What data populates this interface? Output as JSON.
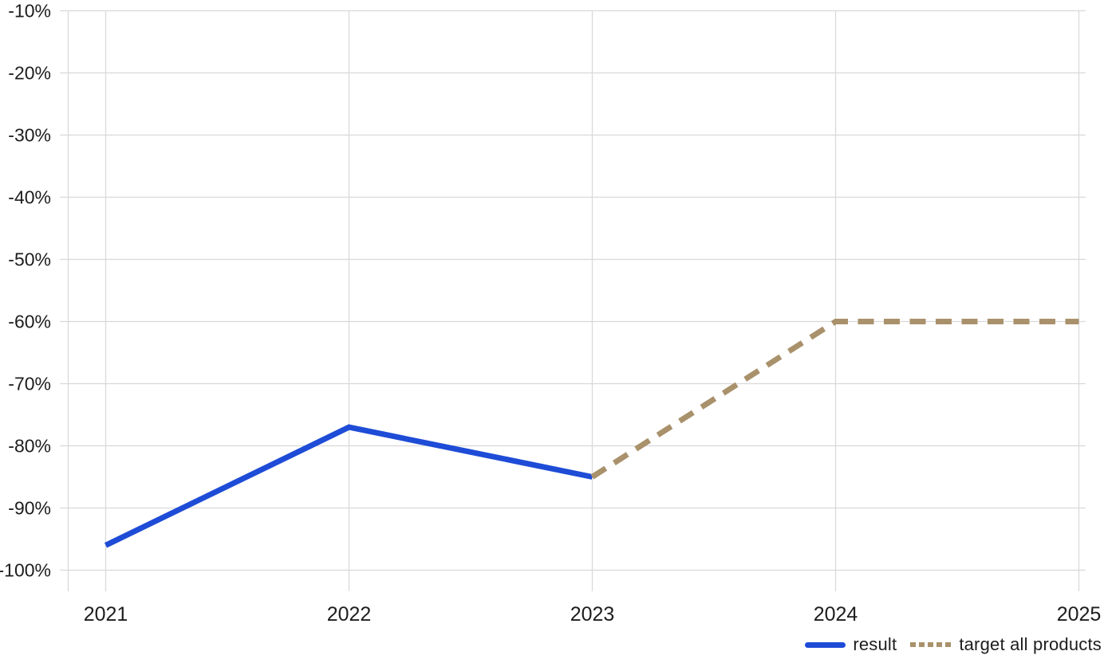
{
  "chart_data": {
    "type": "line",
    "title": "",
    "xlabel": "",
    "ylabel": "",
    "x_labels": [
      "2021",
      "2022",
      "2023",
      "2024",
      "2025"
    ],
    "series": [
      {
        "name": "result",
        "style": "solid",
        "color": "#1E4CD7",
        "values": [
          -96,
          -77,
          -85,
          null,
          null
        ]
      },
      {
        "name": "target all products",
        "style": "dashed",
        "color": "#A9916B",
        "values": [
          null,
          null,
          -85,
          -60,
          -60
        ]
      }
    ],
    "ylim": [
      -100,
      -10
    ],
    "y_tick_step": 10,
    "y_tick_values": [
      -10,
      -20,
      -30,
      -40,
      -50,
      -60,
      -70,
      -80,
      -90,
      -100
    ],
    "y_ticks": [
      "-10%",
      "-20%",
      "-30%",
      "-40%",
      "-50%",
      "-60%",
      "-70%",
      "-80%",
      "-90%",
      "-100%"
    ],
    "grid": true,
    "legend_position": "bottom-right",
    "colors": {
      "grid": "#D9D9D9",
      "axis": "#D9D9D9",
      "text": "#1D1D1D",
      "background": "#FFFFFF"
    }
  }
}
